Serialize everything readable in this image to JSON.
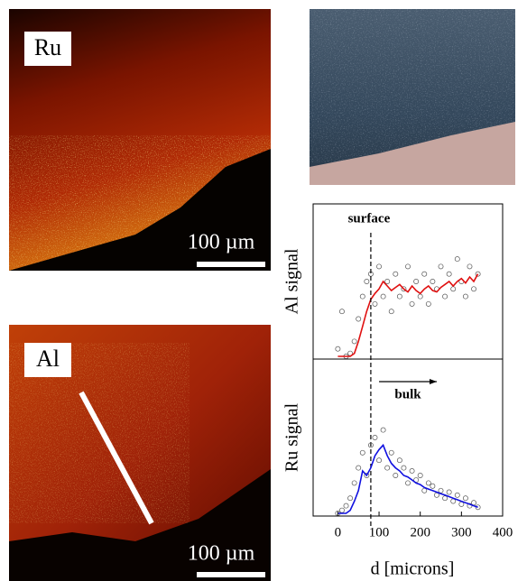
{
  "panels": [
    {
      "label": "Ru",
      "scale_bar": "100 µm"
    },
    {
      "label": "Al",
      "scale_bar": "100 µm"
    }
  ],
  "chart_data": [
    {
      "type": "line",
      "ylabel": "Al signal",
      "x": [
        0,
        10,
        20,
        30,
        40,
        50,
        60,
        70,
        80,
        90,
        100,
        110,
        120,
        130,
        140,
        150,
        160,
        170,
        180,
        190,
        200,
        210,
        220,
        230,
        240,
        250,
        260,
        270,
        280,
        290,
        300,
        310,
        320,
        330,
        340
      ],
      "series": [
        {
          "style": "markers",
          "color": "#555555",
          "values": [
            0.05,
            0.3,
            0.0,
            0.02,
            0.1,
            0.25,
            0.4,
            0.5,
            0.55,
            0.35,
            0.6,
            0.4,
            0.5,
            0.3,
            0.55,
            0.4,
            0.45,
            0.6,
            0.35,
            0.5,
            0.4,
            0.55,
            0.35,
            0.5,
            0.45,
            0.6,
            0.4,
            0.55,
            0.45,
            0.65,
            0.5,
            0.4,
            0.6,
            0.45,
            0.55
          ]
        },
        {
          "style": "line",
          "color": "#e01010",
          "values": [
            0,
            0,
            0,
            0,
            0.02,
            0.1,
            0.2,
            0.3,
            0.38,
            0.42,
            0.45,
            0.5,
            0.47,
            0.44,
            0.46,
            0.48,
            0.45,
            0.43,
            0.47,
            0.44,
            0.42,
            0.45,
            0.47,
            0.44,
            0.43,
            0.46,
            0.48,
            0.5,
            0.47,
            0.5,
            0.52,
            0.49,
            0.53,
            0.5,
            0.55
          ]
        }
      ],
      "xlim": [
        -60,
        400
      ],
      "ylim": [
        0,
        1
      ],
      "reference_line": {
        "x": 80,
        "label": "surface"
      }
    },
    {
      "type": "line",
      "ylabel": "Ru signal",
      "xlabel": "d [microns]",
      "x": [
        0,
        10,
        20,
        30,
        40,
        50,
        60,
        70,
        80,
        90,
        100,
        110,
        120,
        130,
        140,
        150,
        160,
        170,
        180,
        190,
        200,
        210,
        220,
        230,
        240,
        250,
        260,
        270,
        280,
        290,
        300,
        310,
        320,
        330,
        340
      ],
      "series": [
        {
          "style": "markers",
          "color": "#555555",
          "values": [
            0.0,
            0.02,
            0.05,
            0.1,
            0.2,
            0.3,
            0.4,
            0.25,
            0.45,
            0.5,
            0.35,
            0.55,
            0.3,
            0.4,
            0.25,
            0.35,
            0.3,
            0.2,
            0.28,
            0.22,
            0.25,
            0.15,
            0.2,
            0.18,
            0.12,
            0.15,
            0.1,
            0.14,
            0.08,
            0.12,
            0.06,
            0.1,
            0.05,
            0.07,
            0.04
          ]
        },
        {
          "style": "line",
          "color": "#1010e0",
          "values": [
            0,
            0,
            0,
            0.02,
            0.08,
            0.15,
            0.28,
            0.25,
            0.3,
            0.38,
            0.42,
            0.45,
            0.38,
            0.33,
            0.3,
            0.28,
            0.25,
            0.24,
            0.22,
            0.2,
            0.19,
            0.17,
            0.16,
            0.15,
            0.14,
            0.13,
            0.12,
            0.11,
            0.1,
            0.09,
            0.08,
            0.07,
            0.06,
            0.05,
            0.04
          ]
        }
      ],
      "xlim": [
        -60,
        400
      ],
      "ylim": [
        0,
        1
      ],
      "xticks": [
        0,
        100,
        200,
        300,
        400
      ],
      "arrow": {
        "x": [
          100,
          240
        ],
        "label": "bulk"
      }
    }
  ]
}
